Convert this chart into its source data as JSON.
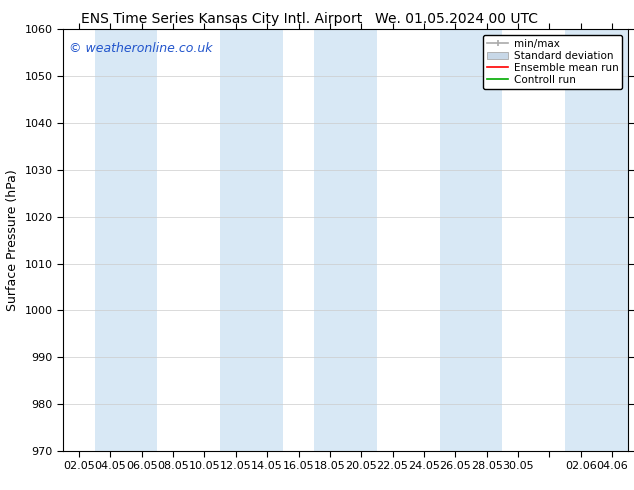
{
  "title": "ENS Time Series Kansas City Intl. Airport",
  "title2": "We. 01.05.2024 00 UTC",
  "ylabel": "Surface Pressure (hPa)",
  "ylim": [
    970,
    1060
  ],
  "yticks": [
    970,
    980,
    990,
    1000,
    1010,
    1020,
    1030,
    1040,
    1050,
    1060
  ],
  "xtick_labels": [
    "02.05",
    "04.05",
    "06.05",
    "08.05",
    "10.05",
    "12.05",
    "14.05",
    "16.05",
    "18.05",
    "20.05",
    "22.05",
    "24.05",
    "26.05",
    "28.05",
    "30.05",
    "",
    "02.06",
    "04.06"
  ],
  "band_color": "#d8e8f5",
  "background_color": "#ffffff",
  "watermark": "© weatheronline.co.uk",
  "minmax_color": "#aaaaaa",
  "stddev_color": "#c8d8e8",
  "ensemble_color": "#ff0000",
  "control_color": "#00aa00",
  "title_fontsize": 10,
  "tick_fontsize": 8,
  "ylabel_fontsize": 9,
  "watermark_fontsize": 9,
  "legend_fontsize": 7.5
}
